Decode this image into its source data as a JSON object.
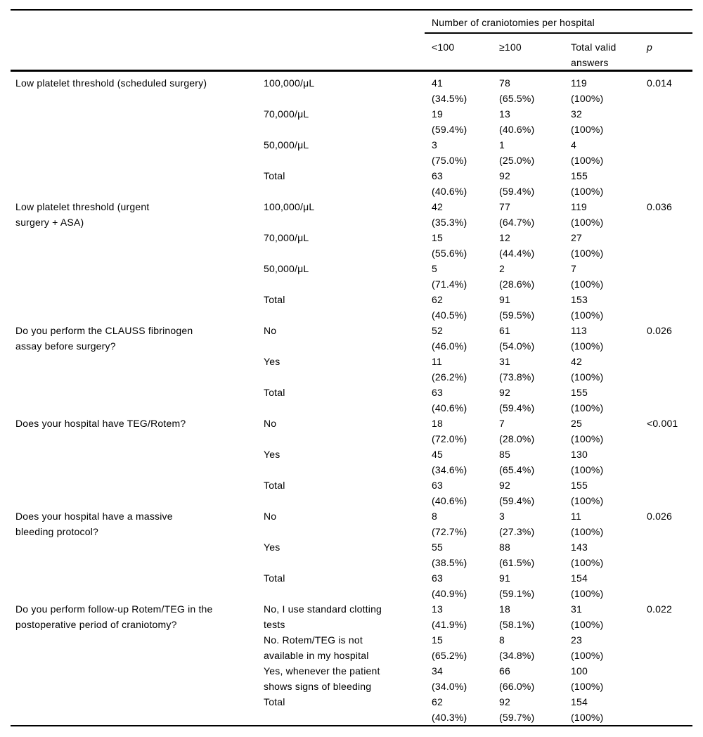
{
  "page": {
    "background": "#ffffff",
    "text_color": "#000000",
    "rule_color": "#000000"
  },
  "table": {
    "span_header": "Number of craniotomies per hospital",
    "col_headers": {
      "lt100": "<100",
      "ge100": "≥100",
      "total_line1": "Total valid",
      "total_line2": "answers",
      "p": "p"
    },
    "groups": [
      {
        "question_lines": [
          "Low platelet threshold (scheduled surgery)"
        ],
        "p": "0.014",
        "rows": [
          {
            "answer_lines": [
              "100,000/μL"
            ],
            "cells": [
              {
                "n": "41",
                "pct": "(34.5%)"
              },
              {
                "n": "78",
                "pct": "(65.5%)"
              },
              {
                "n": "119",
                "pct": "(100%)"
              }
            ]
          },
          {
            "answer_lines": [
              "70,000/μL"
            ],
            "cells": [
              {
                "n": "19",
                "pct": "(59.4%)"
              },
              {
                "n": "13",
                "pct": "(40.6%)"
              },
              {
                "n": "32",
                "pct": "(100%)"
              }
            ]
          },
          {
            "answer_lines": [
              "50,000/μL"
            ],
            "cells": [
              {
                "n": "3",
                "pct": "(75.0%)"
              },
              {
                "n": "1",
                "pct": "(25.0%)"
              },
              {
                "n": "4",
                "pct": "(100%)"
              }
            ]
          },
          {
            "answer_lines": [
              "Total"
            ],
            "cells": [
              {
                "n": "63",
                "pct": "(40.6%)"
              },
              {
                "n": "92",
                "pct": "(59.4%)"
              },
              {
                "n": "155",
                "pct": "(100%)"
              }
            ]
          }
        ]
      },
      {
        "question_lines": [
          "Low platelet threshold (urgent",
          "surgery + ASA)"
        ],
        "p": "0.036",
        "rows": [
          {
            "answer_lines": [
              "100,000/μL"
            ],
            "cells": [
              {
                "n": "42",
                "pct": "(35.3%)"
              },
              {
                "n": "77",
                "pct": "(64.7%)"
              },
              {
                "n": "119",
                "pct": "(100%)"
              }
            ]
          },
          {
            "answer_lines": [
              "70,000/μL"
            ],
            "cells": [
              {
                "n": "15",
                "pct": "(55.6%)"
              },
              {
                "n": "12",
                "pct": "(44.4%)"
              },
              {
                "n": "27",
                "pct": "(100%)"
              }
            ]
          },
          {
            "answer_lines": [
              "50,000/μL"
            ],
            "cells": [
              {
                "n": "5",
                "pct": "(71.4%)"
              },
              {
                "n": "2",
                "pct": "(28.6%)"
              },
              {
                "n": "7",
                "pct": "(100%)"
              }
            ]
          },
          {
            "answer_lines": [
              "Total"
            ],
            "cells": [
              {
                "n": "62",
                "pct": "(40.5%)"
              },
              {
                "n": "91",
                "pct": "(59.5%)"
              },
              {
                "n": "153",
                "pct": "(100%)"
              }
            ]
          }
        ]
      },
      {
        "question_lines": [
          "Do you perform the CLAUSS fibrinogen",
          "assay before surgery?"
        ],
        "p": "0.026",
        "rows": [
          {
            "answer_lines": [
              "No"
            ],
            "cells": [
              {
                "n": "52",
                "pct": "(46.0%)"
              },
              {
                "n": "61",
                "pct": "(54.0%)"
              },
              {
                "n": "113",
                "pct": "(100%)"
              }
            ]
          },
          {
            "answer_lines": [
              "Yes"
            ],
            "cells": [
              {
                "n": "11",
                "pct": "(26.2%)"
              },
              {
                "n": "31",
                "pct": "(73.8%)"
              },
              {
                "n": "42",
                "pct": "(100%)"
              }
            ]
          },
          {
            "answer_lines": [
              "Total"
            ],
            "cells": [
              {
                "n": "63",
                "pct": "(40.6%)"
              },
              {
                "n": "92",
                "pct": "(59.4%)"
              },
              {
                "n": "155",
                "pct": "(100%)"
              }
            ]
          }
        ]
      },
      {
        "question_lines": [
          "Does your hospital have TEG/Rotem?"
        ],
        "p": "<0.001",
        "rows": [
          {
            "answer_lines": [
              "No"
            ],
            "cells": [
              {
                "n": "18",
                "pct": "(72.0%)"
              },
              {
                "n": "7",
                "pct": "(28.0%)"
              },
              {
                "n": "25",
                "pct": "(100%)"
              }
            ]
          },
          {
            "answer_lines": [
              "Yes"
            ],
            "cells": [
              {
                "n": "45",
                "pct": "(34.6%)"
              },
              {
                "n": "85",
                "pct": "(65.4%)"
              },
              {
                "n": "130",
                "pct": "(100%)"
              }
            ]
          },
          {
            "answer_lines": [
              "Total"
            ],
            "cells": [
              {
                "n": "63",
                "pct": "(40.6%)"
              },
              {
                "n": "92",
                "pct": "(59.4%)"
              },
              {
                "n": "155",
                "pct": "(100%)"
              }
            ]
          }
        ]
      },
      {
        "question_lines": [
          "Does your hospital have a massive",
          "bleeding protocol?"
        ],
        "p": "0.026",
        "rows": [
          {
            "answer_lines": [
              "No"
            ],
            "cells": [
              {
                "n": "8",
                "pct": "(72.7%)"
              },
              {
                "n": "3",
                "pct": "(27.3%)"
              },
              {
                "n": "11",
                "pct": "(100%)"
              }
            ]
          },
          {
            "answer_lines": [
              "Yes"
            ],
            "cells": [
              {
                "n": "55",
                "pct": "(38.5%)"
              },
              {
                "n": "88",
                "pct": "(61.5%)"
              },
              {
                "n": "143",
                "pct": "(100%)"
              }
            ]
          },
          {
            "answer_lines": [
              "Total"
            ],
            "cells": [
              {
                "n": "63",
                "pct": "(40.9%)"
              },
              {
                "n": "91",
                "pct": "(59.1%)"
              },
              {
                "n": "154",
                "pct": "(100%)"
              }
            ]
          }
        ]
      },
      {
        "question_lines": [
          "Do you perform follow-up Rotem/TEG in the",
          "postoperative period of craniotomy?"
        ],
        "p": "0.022",
        "rows": [
          {
            "answer_lines": [
              "No, I use standard clotting",
              "tests"
            ],
            "cells": [
              {
                "n": "13",
                "pct": "(41.9%)"
              },
              {
                "n": "18",
                "pct": "(58.1%)"
              },
              {
                "n": "31",
                "pct": "(100%)"
              }
            ]
          },
          {
            "answer_lines": [
              "No. Rotem/TEG is not",
              "available in my hospital"
            ],
            "cells": [
              {
                "n": "15",
                "pct": "(65.2%)"
              },
              {
                "n": "8",
                "pct": "(34.8%)"
              },
              {
                "n": "23",
                "pct": "(100%)"
              }
            ]
          },
          {
            "answer_lines": [
              "Yes, whenever the patient",
              "shows signs of bleeding"
            ],
            "cells": [
              {
                "n": "34",
                "pct": "(34.0%)"
              },
              {
                "n": "66",
                "pct": "(66.0%)"
              },
              {
                "n": "100",
                "pct": "(100%)"
              }
            ]
          },
          {
            "answer_lines": [
              "Total"
            ],
            "cells": [
              {
                "n": "62",
                "pct": "(40.3%)"
              },
              {
                "n": "92",
                "pct": "(59.7%)"
              },
              {
                "n": "154",
                "pct": "(100%)"
              }
            ]
          }
        ]
      }
    ]
  }
}
